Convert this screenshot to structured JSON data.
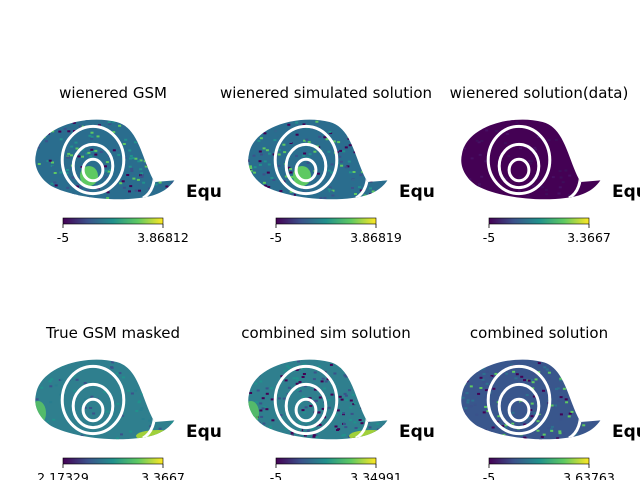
{
  "chart_data": {
    "type": "heatmap",
    "projection": "mollweide-fragment",
    "colormap": [
      "#440154",
      "#3b528b",
      "#21918c",
      "#5ec962",
      "#fde725"
    ],
    "coord_label": "Equ",
    "panels": [
      {
        "title": "wienered GSM",
        "cbar_min": "-5",
        "cbar_max": "3.86812",
        "pattern": "noisy-bright-core"
      },
      {
        "title": "wienered simulated solution",
        "cbar_min": "-5",
        "cbar_max": "3.86819",
        "pattern": "noisy-bright-core"
      },
      {
        "title": "wienered solution(data)",
        "cbar_min": "-5",
        "cbar_max": "3.3667",
        "pattern": "dark"
      },
      {
        "title": "True GSM masked",
        "cbar_min": "2.17329",
        "cbar_max": "3.3667",
        "pattern": "smooth"
      },
      {
        "title": "combined sim solution",
        "cbar_min": "-5",
        "cbar_max": "3.34991",
        "pattern": "smooth-noisy"
      },
      {
        "title": "combined solution",
        "cbar_min": "-5",
        "cbar_max": "3.63763",
        "pattern": "noisy-dark"
      }
    ]
  }
}
